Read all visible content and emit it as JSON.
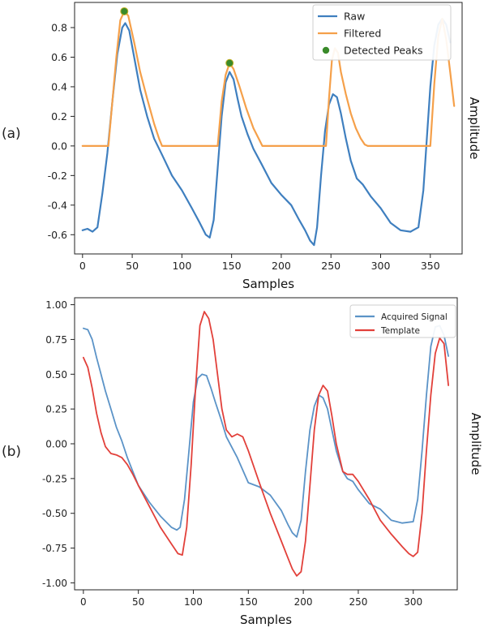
{
  "chart_data": [
    {
      "panel_label": "(a)",
      "type": "line",
      "xlabel": "Samples",
      "ylabel": "Amplitude",
      "xlim": [
        -8,
        382
      ],
      "ylim": [
        -0.73,
        0.97
      ],
      "xticks": [
        0,
        50,
        100,
        150,
        200,
        250,
        300,
        350
      ],
      "yticks": [
        -0.6,
        -0.4,
        -0.2,
        0.0,
        0.2,
        0.4,
        0.6,
        0.8
      ],
      "ytick_labels": [
        "-0.6",
        "-0.4",
        "-0.2",
        "0.0",
        "0.2",
        "0.4",
        "0.6",
        "0.8"
      ],
      "grid": false,
      "legend_position": "top-right",
      "series": [
        {
          "name": "Raw",
          "kind": "line",
          "color": "#3f7fbf",
          "x": [
            0,
            5,
            10,
            15,
            20,
            25,
            30,
            35,
            40,
            43,
            47,
            52,
            58,
            65,
            72,
            80,
            90,
            100,
            110,
            118,
            124,
            128,
            132,
            136,
            140,
            144,
            148,
            152,
            156,
            160,
            166,
            172,
            180,
            190,
            200,
            210,
            218,
            224,
            229,
            233,
            236,
            240,
            244,
            248,
            252,
            256,
            260,
            265,
            270,
            276,
            282,
            290,
            300,
            310,
            320,
            330,
            338,
            343,
            347,
            350,
            354,
            358,
            362,
            366,
            370
          ],
          "y": [
            -0.57,
            -0.56,
            -0.58,
            -0.55,
            -0.32,
            -0.05,
            0.3,
            0.62,
            0.8,
            0.83,
            0.78,
            0.6,
            0.38,
            0.2,
            0.05,
            -0.06,
            -0.2,
            -0.3,
            -0.42,
            -0.52,
            -0.6,
            -0.62,
            -0.5,
            -0.15,
            0.2,
            0.43,
            0.5,
            0.45,
            0.32,
            0.2,
            0.08,
            -0.02,
            -0.12,
            -0.25,
            -0.33,
            -0.4,
            -0.5,
            -0.57,
            -0.64,
            -0.67,
            -0.55,
            -0.2,
            0.1,
            0.28,
            0.35,
            0.33,
            0.22,
            0.05,
            -0.1,
            -0.22,
            -0.26,
            -0.34,
            -0.42,
            -0.52,
            -0.57,
            -0.58,
            -0.55,
            -0.3,
            0.1,
            0.4,
            0.68,
            0.82,
            0.86,
            0.82,
            0.7
          ]
        },
        {
          "name": "Filtered",
          "kind": "line",
          "color": "#f5a04a",
          "x": [
            0,
            26,
            30,
            34,
            38,
            42,
            46,
            52,
            58,
            65,
            72,
            77,
            80,
            100,
            120,
            136,
            140,
            144,
            148,
            152,
            158,
            165,
            172,
            178,
            181,
            200,
            230,
            245,
            248,
            251,
            254,
            257,
            260,
            265,
            270,
            275,
            280,
            284,
            287,
            300,
            330,
            350,
            354,
            358,
            362,
            366,
            370,
            374
          ],
          "y": [
            0.0,
            0.0,
            0.3,
            0.6,
            0.85,
            0.91,
            0.88,
            0.7,
            0.5,
            0.32,
            0.15,
            0.05,
            0.0,
            0.0,
            0.0,
            0.0,
            0.3,
            0.48,
            0.56,
            0.52,
            0.4,
            0.25,
            0.12,
            0.04,
            0.0,
            0.0,
            0.0,
            0.0,
            0.32,
            0.58,
            0.66,
            0.63,
            0.5,
            0.35,
            0.22,
            0.12,
            0.05,
            0.01,
            0.0,
            0.0,
            0.0,
            0.0,
            0.42,
            0.74,
            0.86,
            0.72,
            0.5,
            0.27
          ]
        },
        {
          "name": "Detected Peaks",
          "kind": "scatter",
          "color": "#3a8a2a",
          "x": [
            42,
            148
          ],
          "y": [
            0.91,
            0.56
          ]
        }
      ]
    },
    {
      "panel_label": "(b)",
      "type": "line",
      "xlabel": "Samples",
      "ylabel": "Amplitude",
      "xlim": [
        -8,
        340
      ],
      "ylim": [
        -1.05,
        1.05
      ],
      "xticks": [
        0,
        50,
        100,
        150,
        200,
        250,
        300
      ],
      "yticks": [
        -1.0,
        -0.75,
        -0.5,
        -0.25,
        0.0,
        0.25,
        0.5,
        0.75,
        1.0
      ],
      "ytick_labels": [
        "-1.00",
        "-0.75",
        "-0.50",
        "-0.25",
        "0.00",
        "0.25",
        "0.50",
        "0.75",
        "1.00"
      ],
      "grid": false,
      "legend_position": "top-right",
      "series": [
        {
          "name": "Acquired Signal",
          "kind": "line",
          "color": "#5b93c7",
          "x": [
            0,
            4,
            8,
            12,
            16,
            20,
            25,
            30,
            35,
            40,
            45,
            50,
            60,
            70,
            80,
            85,
            88,
            92,
            96,
            100,
            104,
            108,
            112,
            116,
            120,
            125,
            130,
            140,
            150,
            160,
            170,
            180,
            186,
            190,
            194,
            198,
            202,
            206,
            210,
            214,
            218,
            222,
            226,
            230,
            236,
            240,
            245,
            250,
            260,
            270,
            280,
            290,
            300,
            304,
            308,
            312,
            316,
            320,
            324,
            328,
            332
          ],
          "y": [
            0.83,
            0.82,
            0.75,
            0.62,
            0.5,
            0.38,
            0.25,
            0.12,
            0.02,
            -0.1,
            -0.2,
            -0.3,
            -0.42,
            -0.52,
            -0.6,
            -0.62,
            -0.6,
            -0.4,
            -0.05,
            0.3,
            0.47,
            0.5,
            0.49,
            0.4,
            0.3,
            0.18,
            0.05,
            -0.1,
            -0.28,
            -0.31,
            -0.37,
            -0.48,
            -0.58,
            -0.64,
            -0.67,
            -0.55,
            -0.2,
            0.1,
            0.27,
            0.35,
            0.33,
            0.25,
            0.1,
            -0.05,
            -0.2,
            -0.25,
            -0.27,
            -0.33,
            -0.43,
            -0.47,
            -0.55,
            -0.57,
            -0.56,
            -0.4,
            -0.05,
            0.35,
            0.7,
            0.84,
            0.85,
            0.78,
            0.63
          ]
        },
        {
          "name": "Template",
          "kind": "line",
          "color": "#e2403a",
          "x": [
            0,
            4,
            8,
            12,
            16,
            20,
            25,
            30,
            35,
            40,
            45,
            50,
            60,
            70,
            80,
            86,
            90,
            94,
            98,
            102,
            106,
            110,
            114,
            118,
            122,
            126,
            130,
            135,
            140,
            145,
            150,
            160,
            170,
            180,
            186,
            190,
            194,
            198,
            202,
            206,
            210,
            214,
            218,
            222,
            226,
            230,
            236,
            240,
            245,
            250,
            260,
            270,
            280,
            290,
            296,
            300,
            304,
            308,
            312,
            316,
            320,
            324,
            328,
            332
          ],
          "y": [
            0.62,
            0.55,
            0.4,
            0.22,
            0.08,
            -0.02,
            -0.07,
            -0.08,
            -0.1,
            -0.15,
            -0.22,
            -0.3,
            -0.45,
            -0.6,
            -0.72,
            -0.79,
            -0.8,
            -0.6,
            -0.15,
            0.4,
            0.85,
            0.95,
            0.9,
            0.75,
            0.5,
            0.25,
            0.1,
            0.05,
            0.07,
            0.05,
            -0.05,
            -0.28,
            -0.5,
            -0.7,
            -0.82,
            -0.9,
            -0.95,
            -0.92,
            -0.7,
            -0.3,
            0.1,
            0.35,
            0.42,
            0.38,
            0.2,
            0.0,
            -0.2,
            -0.22,
            -0.22,
            -0.27,
            -0.4,
            -0.55,
            -0.65,
            -0.74,
            -0.79,
            -0.81,
            -0.78,
            -0.5,
            -0.05,
            0.35,
            0.65,
            0.76,
            0.72,
            0.42
          ]
        }
      ]
    }
  ]
}
